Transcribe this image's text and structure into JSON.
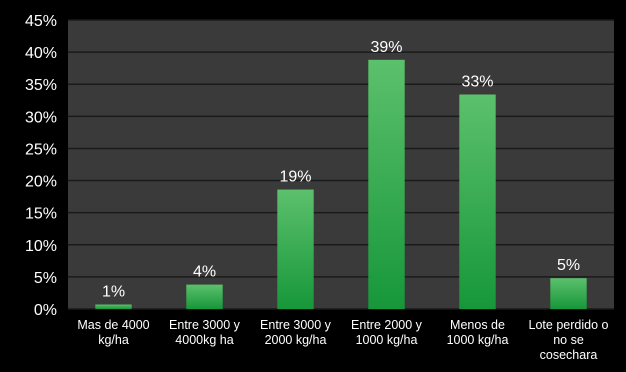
{
  "chart_data": {
    "type": "bar",
    "categories": [
      [
        "Mas de 4000",
        "kg/ha"
      ],
      [
        "Entre 3000 y",
        "4000kg ha"
      ],
      [
        "Entre 3000 y",
        "2000 kg/ha"
      ],
      [
        "Entre 2000 y",
        "1000 kg/ha"
      ],
      [
        "Menos de",
        "1000 kg/ha"
      ],
      [
        "Lote perdido o",
        "no se",
        "cosechara"
      ]
    ],
    "values": [
      0.7,
      3.8,
      18.6,
      38.8,
      33.4,
      4.8
    ],
    "data_labels": [
      "1%",
      "4%",
      "19%",
      "39%",
      "33%",
      "5%"
    ],
    "y_ticks": [
      "0%",
      "5%",
      "10%",
      "15%",
      "20%",
      "25%",
      "30%",
      "35%",
      "40%",
      "45%"
    ],
    "ylim": [
      0,
      45
    ],
    "grid": true,
    "legend": "none",
    "colors": {
      "background": "#000000",
      "plot_area": "#3a3a3a",
      "gridline": "#1a1a1a",
      "bar_top": "#5cc06c",
      "bar_bottom": "#17973a",
      "text": "#ffffff"
    }
  }
}
